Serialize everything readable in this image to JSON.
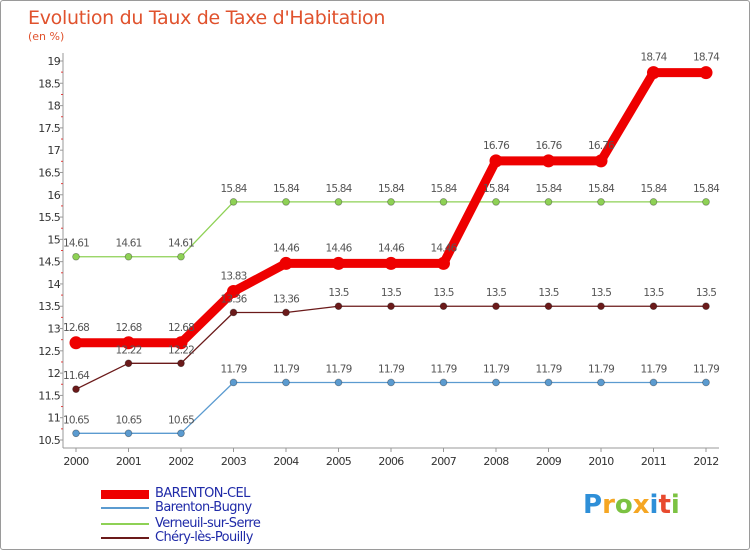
{
  "header": {
    "title": "Evolution du Taux de Taxe d'Habitation",
    "unit": "(en %)"
  },
  "chart_data": {
    "type": "line",
    "title": "Evolution du Taux de Taxe d'Habitation",
    "ylabel": "(en %)",
    "xlabel": "",
    "categories": [
      "2000",
      "2001",
      "2002",
      "2003",
      "2004",
      "2005",
      "2006",
      "2007",
      "2008",
      "2009",
      "2010",
      "2011",
      "2012"
    ],
    "ylim": [
      10.5,
      19
    ],
    "yticks": [
      "10.5",
      "11",
      "11.5",
      "12",
      "12.5",
      "13",
      "13.5",
      "14",
      "14.5",
      "15",
      "15.5",
      "16",
      "16.5",
      "17",
      "17.5",
      "18",
      "18.5",
      "19"
    ],
    "grid": false,
    "legend": "bottom-left",
    "series": [
      {
        "name": "BARENTON-CEL",
        "color": "#ee0000",
        "values": [
          12.68,
          12.68,
          12.68,
          13.83,
          14.46,
          14.46,
          14.46,
          14.46,
          16.76,
          16.76,
          16.76,
          18.74,
          18.74
        ]
      },
      {
        "name": "Barenton-Bugny",
        "color": "#5b9bd0",
        "values": [
          10.65,
          10.65,
          10.65,
          11.79,
          11.79,
          11.79,
          11.79,
          11.79,
          11.79,
          11.79,
          11.79,
          11.79,
          11.79
        ]
      },
      {
        "name": "Verneuil-sur-Serre",
        "color": "#8ed155",
        "values": [
          14.61,
          14.61,
          14.61,
          15.84,
          15.84,
          15.84,
          15.84,
          15.84,
          15.84,
          15.84,
          15.84,
          15.84,
          15.84
        ]
      },
      {
        "name": "Chéry-lès-Pouilly",
        "color": "#6b1a1a",
        "values": [
          11.64,
          12.22,
          12.22,
          13.36,
          13.36,
          13.5,
          13.5,
          13.5,
          13.5,
          13.5,
          13.5,
          13.5,
          13.5
        ]
      }
    ],
    "labels": [
      [
        "12.68",
        "12.68",
        "12.68",
        "13.83",
        "14.46",
        "14.46",
        "14.46",
        "14.46",
        "16.76",
        "16.76",
        "16.76",
        "18.74",
        "18.74"
      ],
      [
        "10.65",
        "10.65",
        "10.65",
        "11.79",
        "11.79",
        "11.79",
        "11.79",
        "11.79",
        "11.79",
        "11.79",
        "11.79",
        "11.79",
        "11.79"
      ],
      [
        "14.61",
        "14.61",
        "14.61",
        "15.84",
        "15.84",
        "15.84",
        "15.84",
        "15.84",
        "15.84",
        "15.84",
        "15.84",
        "15.84",
        "15.84"
      ],
      [
        "11.64",
        "12.22",
        "12.22",
        "13.36",
        "13.36",
        "13.5",
        "13.5",
        "13.5",
        "13.5",
        "13.5",
        "13.5",
        "13.5",
        "13.5"
      ]
    ]
  },
  "logo": {
    "letters": [
      "P",
      "r",
      "o",
      "x",
      "i",
      "t",
      "i"
    ],
    "colors": [
      "#2e8fd8",
      "#f5a623",
      "#7cc242",
      "#f5a623",
      "#2e8fd8",
      "#e84a2e",
      "#7cc242"
    ]
  }
}
